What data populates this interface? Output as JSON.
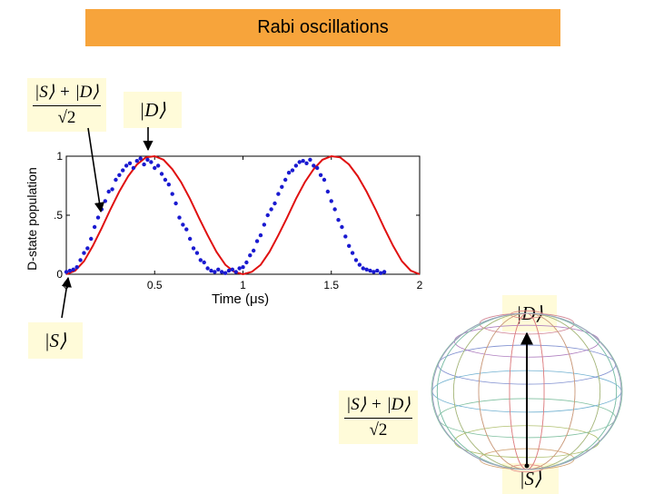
{
  "header": {
    "title": "Rabi oscillations"
  },
  "labels": {
    "superposition_num": "|S⟩ + |D⟩",
    "superposition_den": "√2",
    "ket_D": "|D⟩",
    "ket_S": "|S⟩"
  },
  "colors": {
    "title_bg": "#f7a43b",
    "fit_line": "#e01010",
    "points": "#1a1ad0",
    "eq_bg": "#fffbd9"
  },
  "chart_data": {
    "type": "scatter",
    "title": "",
    "xlabel": "Time (μs)",
    "ylabel": "D-state population",
    "xlim": [
      0,
      2
    ],
    "ylim": [
      0,
      1
    ],
    "x_ticks": [
      "0",
      "0.5",
      "1",
      "1.5",
      "2"
    ],
    "y_ticks": [
      "0",
      ".5",
      "1"
    ],
    "grid": false,
    "series": [
      {
        "kind": "points",
        "x": [
          0.0,
          0.02,
          0.04,
          0.06,
          0.08,
          0.1,
          0.12,
          0.14,
          0.16,
          0.18,
          0.2,
          0.22,
          0.24,
          0.26,
          0.28,
          0.3,
          0.32,
          0.34,
          0.36,
          0.38,
          0.4,
          0.42,
          0.44,
          0.46,
          0.48,
          0.5,
          0.52,
          0.54,
          0.56,
          0.58,
          0.6,
          0.62,
          0.64,
          0.66,
          0.68,
          0.7,
          0.72,
          0.74,
          0.76,
          0.78,
          0.8,
          0.82,
          0.84,
          0.86,
          0.88,
          0.9,
          0.92,
          0.94,
          0.96,
          0.98,
          1.0,
          1.02,
          1.04,
          1.06,
          1.08,
          1.1,
          1.12,
          1.14,
          1.16,
          1.18,
          1.2,
          1.22,
          1.24,
          1.26,
          1.28,
          1.3,
          1.32,
          1.34,
          1.36,
          1.38,
          1.4,
          1.42,
          1.44,
          1.46,
          1.48,
          1.5,
          1.52,
          1.54,
          1.56,
          1.58,
          1.6,
          1.62,
          1.64,
          1.66,
          1.68,
          1.7,
          1.72,
          1.74,
          1.76,
          1.78,
          1.8
        ],
        "y": [
          0.02,
          0.03,
          0.04,
          0.06,
          0.12,
          0.18,
          0.22,
          0.3,
          0.4,
          0.48,
          0.55,
          0.62,
          0.7,
          0.72,
          0.8,
          0.84,
          0.88,
          0.92,
          0.94,
          0.9,
          0.96,
          0.98,
          0.93,
          0.97,
          0.95,
          0.9,
          0.92,
          0.85,
          0.8,
          0.76,
          0.68,
          0.6,
          0.48,
          0.42,
          0.38,
          0.3,
          0.22,
          0.18,
          0.12,
          0.1,
          0.05,
          0.03,
          0.02,
          0.04,
          0.02,
          0.01,
          0.03,
          0.04,
          0.02,
          0.05,
          0.06,
          0.1,
          0.16,
          0.2,
          0.28,
          0.33,
          0.42,
          0.5,
          0.55,
          0.6,
          0.68,
          0.74,
          0.8,
          0.86,
          0.88,
          0.92,
          0.95,
          0.96,
          0.94,
          0.97,
          0.92,
          0.9,
          0.84,
          0.8,
          0.7,
          0.62,
          0.55,
          0.46,
          0.4,
          0.32,
          0.24,
          0.18,
          0.12,
          0.08,
          0.05,
          0.04,
          0.03,
          0.02,
          0.03,
          0.01,
          0.02
        ]
      },
      {
        "kind": "fit",
        "x": [
          0.0,
          0.05,
          0.1,
          0.15,
          0.2,
          0.25,
          0.3,
          0.35,
          0.4,
          0.45,
          0.5,
          0.55,
          0.6,
          0.65,
          0.7,
          0.75,
          0.8,
          0.85,
          0.9,
          0.95,
          1.0,
          1.05,
          1.1,
          1.15,
          1.2,
          1.25,
          1.3,
          1.35,
          1.4,
          1.45,
          1.5,
          1.55,
          1.6,
          1.65,
          1.7,
          1.75,
          1.8,
          1.85,
          1.9,
          1.95,
          2.0
        ],
        "y": [
          0.0,
          0.03,
          0.11,
          0.24,
          0.39,
          0.55,
          0.7,
          0.83,
          0.93,
          0.99,
          1.0,
          0.97,
          0.89,
          0.78,
          0.64,
          0.48,
          0.33,
          0.19,
          0.08,
          0.02,
          0.0,
          0.02,
          0.08,
          0.19,
          0.33,
          0.48,
          0.64,
          0.78,
          0.89,
          0.97,
          1.0,
          0.99,
          0.93,
          0.83,
          0.7,
          0.55,
          0.39,
          0.24,
          0.11,
          0.03,
          0.0
        ]
      }
    ]
  }
}
